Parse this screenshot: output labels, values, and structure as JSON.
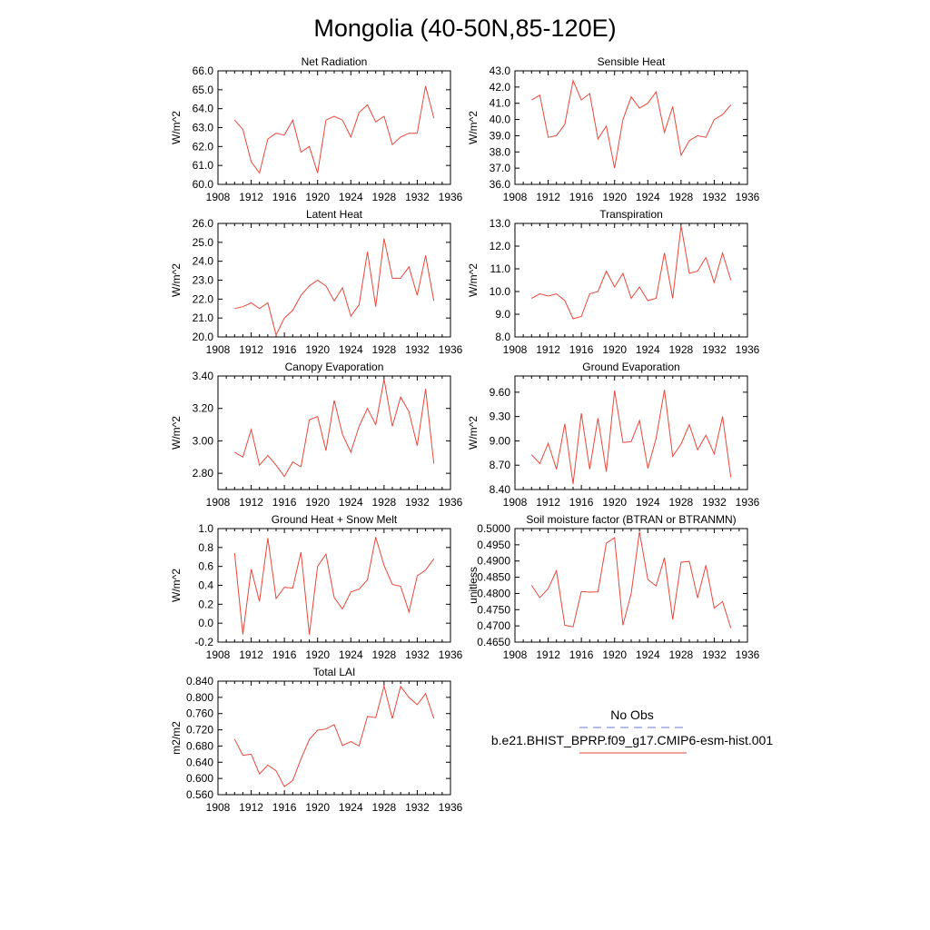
{
  "figure": {
    "title": "Mongolia (40-50N,85-120E)"
  },
  "legend": {
    "entries": [
      {
        "label": "No Obs",
        "color": "#6a7bd0",
        "dash": "dashed"
      },
      {
        "label": "b.e21.BHIST_BPRP.f09_g17.CMIP6-esm-hist.001",
        "color": "#e8473a",
        "dash": "solid"
      }
    ]
  },
  "chart_data": [
    {
      "type": "line",
      "title": "Net Radiation",
      "ylabel": "W/m^2",
      "xlim": [
        1908,
        1936
      ],
      "ylim": [
        60,
        66
      ],
      "xticks": [
        1908,
        1912,
        1916,
        1920,
        1924,
        1928,
        1932,
        1936
      ],
      "yticks": [
        60,
        61,
        62,
        63,
        64,
        65,
        66
      ],
      "ytick_labels": [
        "60.0",
        "61.0",
        "62.0",
        "63.0",
        "64.0",
        "65.0",
        "66.0"
      ],
      "series": [
        {
          "color": "#e8473a",
          "x": [
            1910,
            1911,
            1912,
            1913,
            1914,
            1915,
            1916,
            1917,
            1918,
            1919,
            1920,
            1921,
            1922,
            1923,
            1924,
            1925,
            1926,
            1927,
            1928,
            1929,
            1930,
            1931,
            1932,
            1933,
            1934
          ],
          "values": [
            63.4,
            62.9,
            61.2,
            60.6,
            62.4,
            62.7,
            62.6,
            63.4,
            61.7,
            62.0,
            60.6,
            63.4,
            63.6,
            63.4,
            62.5,
            63.8,
            64.2,
            63.3,
            63.6,
            62.1,
            62.5,
            62.7,
            62.7,
            65.2,
            63.5
          ]
        }
      ]
    },
    {
      "type": "line",
      "title": "Sensible Heat",
      "ylabel": "W/m^2",
      "xlim": [
        1908,
        1936
      ],
      "ylim": [
        36,
        43
      ],
      "xticks": [
        1908,
        1912,
        1916,
        1920,
        1924,
        1928,
        1932,
        1936
      ],
      "yticks": [
        36,
        37,
        38,
        39,
        40,
        41,
        42,
        43
      ],
      "ytick_labels": [
        "36.0",
        "37.0",
        "38.0",
        "39.0",
        "40.0",
        "41.0",
        "42.0",
        "43.0"
      ],
      "series": [
        {
          "color": "#e8473a",
          "x": [
            1910,
            1911,
            1912,
            1913,
            1914,
            1915,
            1916,
            1917,
            1918,
            1919,
            1920,
            1921,
            1922,
            1923,
            1924,
            1925,
            1926,
            1927,
            1928,
            1929,
            1930,
            1931,
            1932,
            1933,
            1934
          ],
          "values": [
            41.2,
            41.5,
            38.9,
            39.0,
            39.7,
            42.4,
            41.2,
            41.6,
            38.8,
            39.6,
            37.0,
            40.0,
            41.4,
            40.7,
            41.0,
            41.7,
            39.2,
            40.8,
            37.8,
            38.7,
            39.0,
            38.9,
            40.0,
            40.3,
            40.9
          ]
        }
      ]
    },
    {
      "type": "line",
      "title": "Latent Heat",
      "ylabel": "W/m^2",
      "xlim": [
        1908,
        1936
      ],
      "ylim": [
        20,
        26
      ],
      "xticks": [
        1908,
        1912,
        1916,
        1920,
        1924,
        1928,
        1932,
        1936
      ],
      "yticks": [
        20,
        21,
        22,
        23,
        24,
        25,
        26
      ],
      "ytick_labels": [
        "20.0",
        "21.0",
        "22.0",
        "23.0",
        "24.0",
        "25.0",
        "26.0"
      ],
      "series": [
        {
          "color": "#e8473a",
          "x": [
            1910,
            1911,
            1912,
            1913,
            1914,
            1915,
            1916,
            1917,
            1918,
            1919,
            1920,
            1921,
            1922,
            1923,
            1924,
            1925,
            1926,
            1927,
            1928,
            1929,
            1930,
            1931,
            1932,
            1933,
            1934
          ],
          "values": [
            21.5,
            21.6,
            21.8,
            21.5,
            21.8,
            20.1,
            21.0,
            21.4,
            22.2,
            22.7,
            23.0,
            22.7,
            21.9,
            22.6,
            21.1,
            21.7,
            24.5,
            21.6,
            25.2,
            23.1,
            23.1,
            23.7,
            22.2,
            24.3,
            21.9
          ]
        }
      ]
    },
    {
      "type": "line",
      "title": "Transpiration",
      "ylabel": "W/m^2",
      "xlim": [
        1908,
        1936
      ],
      "ylim": [
        8,
        13
      ],
      "xticks": [
        1908,
        1912,
        1916,
        1920,
        1924,
        1928,
        1932,
        1936
      ],
      "yticks": [
        8,
        9,
        10,
        11,
        12,
        13
      ],
      "ytick_labels": [
        "8.0",
        "9.0",
        "10.0",
        "11.0",
        "12.0",
        "13.0"
      ],
      "series": [
        {
          "color": "#e8473a",
          "x": [
            1910,
            1911,
            1912,
            1913,
            1914,
            1915,
            1916,
            1917,
            1918,
            1919,
            1920,
            1921,
            1922,
            1923,
            1924,
            1925,
            1926,
            1927,
            1928,
            1929,
            1930,
            1931,
            1932,
            1933,
            1934
          ],
          "values": [
            9.7,
            9.9,
            9.8,
            9.9,
            9.6,
            8.8,
            8.9,
            9.9,
            10.0,
            10.9,
            10.2,
            10.8,
            9.7,
            10.2,
            9.6,
            9.7,
            11.7,
            9.7,
            12.9,
            10.8,
            10.9,
            11.5,
            10.4,
            11.7,
            10.5
          ]
        }
      ]
    },
    {
      "type": "line",
      "title": "Canopy Evaporation",
      "ylabel": "W/m^2",
      "xlim": [
        1908,
        1936
      ],
      "ylim": [
        2.7,
        3.4
      ],
      "xticks": [
        1908,
        1912,
        1916,
        1920,
        1924,
        1928,
        1932,
        1936
      ],
      "yticks": [
        2.8,
        3.0,
        3.2,
        3.4
      ],
      "ytick_labels": [
        "2.80",
        "3.00",
        "3.20",
        "3.40"
      ],
      "series": [
        {
          "color": "#e8473a",
          "x": [
            1910,
            1911,
            1912,
            1913,
            1914,
            1915,
            1916,
            1917,
            1918,
            1919,
            1920,
            1921,
            1922,
            1923,
            1924,
            1925,
            1926,
            1927,
            1928,
            1929,
            1930,
            1931,
            1932,
            1933,
            1934
          ],
          "values": [
            2.93,
            2.9,
            3.07,
            2.85,
            2.91,
            2.85,
            2.78,
            2.87,
            2.84,
            3.13,
            3.15,
            2.94,
            3.25,
            3.04,
            2.93,
            3.09,
            3.2,
            3.1,
            3.38,
            3.09,
            3.27,
            3.18,
            2.97,
            3.32,
            2.86
          ]
        }
      ]
    },
    {
      "type": "line",
      "title": "Ground Evaporation",
      "ylabel": "W/m^2",
      "xlim": [
        1908,
        1936
      ],
      "ylim": [
        8.4,
        9.8
      ],
      "xticks": [
        1908,
        1912,
        1916,
        1920,
        1924,
        1928,
        1932,
        1936
      ],
      "yticks": [
        8.4,
        8.7,
        9.0,
        9.3,
        9.6
      ],
      "ytick_labels": [
        "8.40",
        "8.70",
        "9.00",
        "9.30",
        "9.60"
      ],
      "series": [
        {
          "color": "#e8473a",
          "x": [
            1910,
            1911,
            1912,
            1913,
            1914,
            1915,
            1916,
            1917,
            1918,
            1919,
            1920,
            1921,
            1922,
            1923,
            1924,
            1925,
            1926,
            1927,
            1928,
            1929,
            1930,
            1931,
            1932,
            1933,
            1934
          ],
          "values": [
            8.83,
            8.72,
            8.97,
            8.65,
            9.21,
            8.47,
            9.34,
            8.65,
            9.28,
            8.62,
            9.62,
            8.98,
            8.99,
            9.25,
            8.66,
            9.03,
            9.63,
            8.81,
            8.96,
            9.2,
            8.89,
            9.07,
            8.84,
            9.3,
            8.55
          ]
        }
      ]
    },
    {
      "type": "line",
      "title": "Ground Heat + Snow Melt",
      "ylabel": "W/m^2",
      "xlim": [
        1908,
        1936
      ],
      "ylim": [
        -0.2,
        1.0
      ],
      "xticks": [
        1908,
        1912,
        1916,
        1920,
        1924,
        1928,
        1932,
        1936
      ],
      "yticks": [
        -0.2,
        0.0,
        0.2,
        0.4,
        0.6,
        0.8,
        1.0
      ],
      "ytick_labels": [
        "-0.2",
        "0.0",
        "0.2",
        "0.4",
        "0.6",
        "0.8",
        "1.0"
      ],
      "series": [
        {
          "color": "#e8473a",
          "x": [
            1910,
            1911,
            1912,
            1913,
            1914,
            1915,
            1916,
            1917,
            1918,
            1919,
            1920,
            1921,
            1922,
            1923,
            1924,
            1925,
            1926,
            1927,
            1928,
            1929,
            1930,
            1931,
            1932,
            1933,
            1934
          ],
          "values": [
            0.74,
            -0.12,
            0.57,
            0.23,
            0.9,
            0.26,
            0.38,
            0.37,
            0.75,
            -0.12,
            0.6,
            0.73,
            0.27,
            0.15,
            0.33,
            0.36,
            0.46,
            0.91,
            0.61,
            0.41,
            0.39,
            0.12,
            0.5,
            0.56,
            0.68
          ]
        }
      ]
    },
    {
      "type": "line",
      "title": "Soil moisture factor (BTRAN or BTRANMN)",
      "ylabel": "unitless",
      "xlim": [
        1908,
        1936
      ],
      "ylim": [
        0.465,
        0.5
      ],
      "xticks": [
        1908,
        1912,
        1916,
        1920,
        1924,
        1928,
        1932,
        1936
      ],
      "yticks": [
        0.465,
        0.47,
        0.475,
        0.48,
        0.485,
        0.49,
        0.495,
        0.5
      ],
      "ytick_labels": [
        "0.4650",
        "0.4700",
        "0.4750",
        "0.4800",
        "0.4850",
        "0.4900",
        "0.4950",
        "0.5000"
      ],
      "series": [
        {
          "color": "#e8473a",
          "x": [
            1910,
            1911,
            1912,
            1913,
            1914,
            1915,
            1916,
            1917,
            1918,
            1919,
            1920,
            1921,
            1922,
            1923,
            1924,
            1925,
            1926,
            1927,
            1928,
            1929,
            1930,
            1931,
            1932,
            1933,
            1934
          ],
          "values": [
            0.4825,
            0.4787,
            0.4815,
            0.487,
            0.4702,
            0.4697,
            0.4806,
            0.4804,
            0.4805,
            0.4955,
            0.4972,
            0.4702,
            0.48,
            0.499,
            0.4843,
            0.4823,
            0.491,
            0.472,
            0.4896,
            0.4899,
            0.4786,
            0.4887,
            0.4755,
            0.4775,
            0.4693
          ]
        }
      ]
    },
    {
      "type": "line",
      "title": "Total LAI",
      "ylabel": "m2/m2",
      "xlim": [
        1908,
        1936
      ],
      "ylim": [
        0.56,
        0.84
      ],
      "xticks": [
        1908,
        1912,
        1916,
        1920,
        1924,
        1928,
        1932,
        1936
      ],
      "yticks": [
        0.56,
        0.6,
        0.64,
        0.68,
        0.72,
        0.76,
        0.8,
        0.84
      ],
      "ytick_labels": [
        "0.560",
        "0.600",
        "0.640",
        "0.680",
        "0.720",
        "0.760",
        "0.800",
        "0.840"
      ],
      "series": [
        {
          "color": "#e8473a",
          "x": [
            1910,
            1911,
            1912,
            1913,
            1914,
            1915,
            1916,
            1917,
            1918,
            1919,
            1920,
            1921,
            1922,
            1923,
            1924,
            1925,
            1926,
            1927,
            1928,
            1929,
            1930,
            1931,
            1932,
            1933,
            1934
          ],
          "values": [
            0.697,
            0.657,
            0.66,
            0.611,
            0.633,
            0.619,
            0.58,
            0.595,
            0.648,
            0.696,
            0.719,
            0.722,
            0.733,
            0.681,
            0.691,
            0.68,
            0.753,
            0.75,
            0.828,
            0.748,
            0.827,
            0.8,
            0.782,
            0.809,
            0.748
          ]
        }
      ]
    }
  ]
}
